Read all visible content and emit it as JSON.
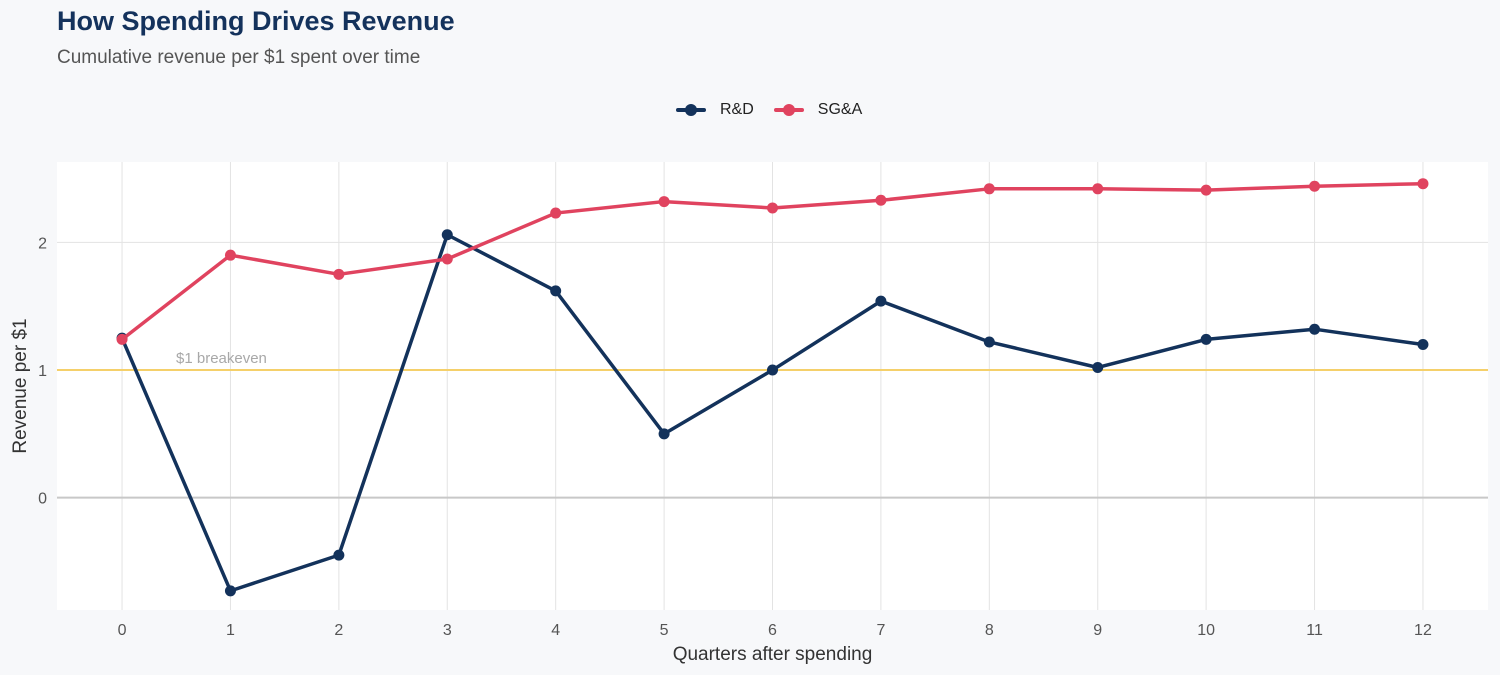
{
  "chart_data": {
    "type": "line",
    "title": "How Spending Drives Revenue",
    "subtitle": "Cumulative revenue per $1 spent over time",
    "xlabel": "Quarters after spending",
    "ylabel": "Revenue per $1",
    "x": [
      0,
      1,
      2,
      3,
      4,
      5,
      6,
      7,
      8,
      9,
      10,
      11,
      12
    ],
    "xlim": [
      -0.6,
      12.6
    ],
    "ylim": [
      -0.88,
      2.63
    ],
    "yticks": [
      0,
      1,
      2
    ],
    "series": [
      {
        "name": "R&D",
        "color": "#13325b",
        "values": [
          1.25,
          -0.73,
          -0.45,
          2.06,
          1.62,
          0.5,
          1.0,
          1.54,
          1.22,
          1.02,
          1.24,
          1.32,
          1.2
        ]
      },
      {
        "name": "SG&A",
        "color": "#e0435f",
        "values": [
          1.24,
          1.9,
          1.75,
          1.87,
          2.23,
          2.32,
          2.27,
          2.33,
          2.42,
          2.42,
          2.41,
          2.44,
          2.46
        ]
      }
    ],
    "reference_line": {
      "y": 1,
      "label": "$1 breakeven",
      "color": "#f5d06a"
    },
    "legend_position": "top-center",
    "grid": true
  }
}
